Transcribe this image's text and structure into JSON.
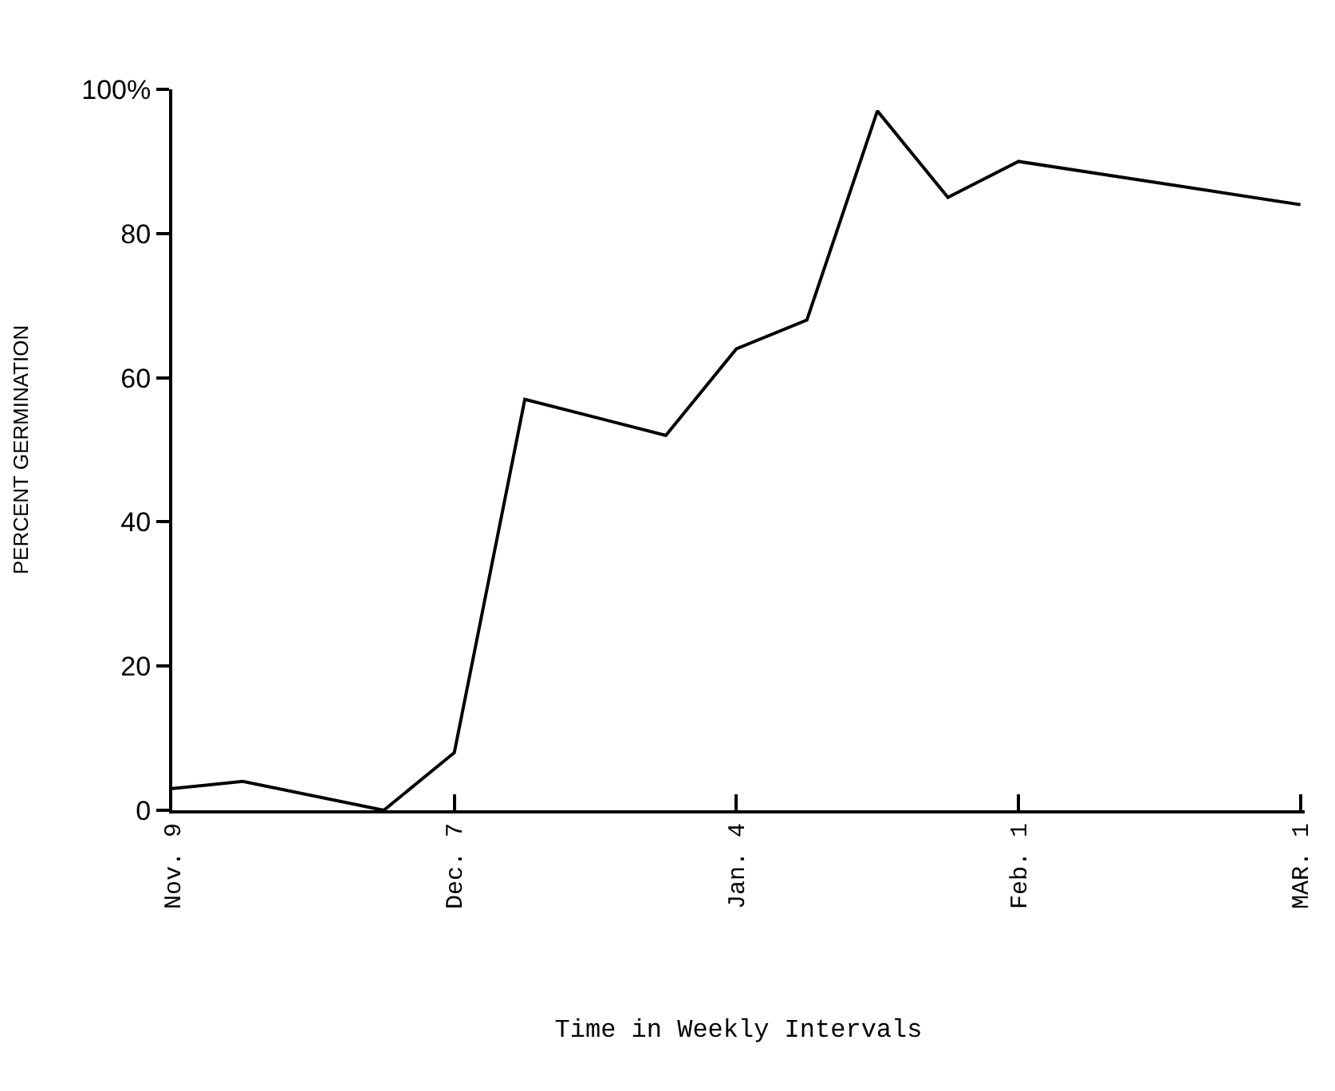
{
  "chart_data": {
    "type": "line",
    "xlabel": "Time in Weekly Intervals",
    "ylabel": "PERCENT GERMINATION",
    "categories": [
      "Nov. 9",
      null,
      null,
      null,
      "Dec. 7",
      null,
      null,
      null,
      "Jan. 4",
      null,
      null,
      null,
      "Feb. 1",
      null,
      null,
      null,
      "MAR. 1"
    ],
    "series": [
      {
        "color": "#000000",
        "values": [
          3,
          4,
          null,
          0,
          8,
          57,
          null,
          52,
          64,
          68,
          97,
          85,
          90,
          null,
          null,
          null,
          84
        ]
      }
    ],
    "ylim": [
      0,
      100
    ],
    "yticks": [
      0,
      20,
      40,
      60,
      80,
      {
        "value": 100,
        "label": "100%"
      }
    ],
    "grid": false,
    "marker": "none",
    "line_style": "solid"
  }
}
